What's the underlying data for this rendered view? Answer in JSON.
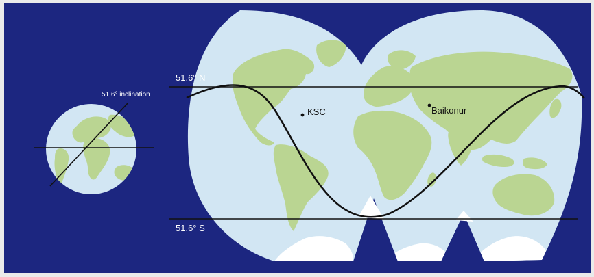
{
  "colors": {
    "background": "#1c2680",
    "frame": "#eaeaea",
    "ocean": "#d2e6f3",
    "land": "#bad592",
    "ice": "#ffffff",
    "line": "#111111",
    "label_on_background": "#ffffff",
    "label_on_map": "#111111"
  },
  "labels": {
    "north_latitude": "51.6° N",
    "south_latitude": "51.6° S",
    "inclination": "51.6° inclination"
  },
  "sites": [
    {
      "name": "KSC"
    },
    {
      "name": "Baikonur"
    }
  ]
}
